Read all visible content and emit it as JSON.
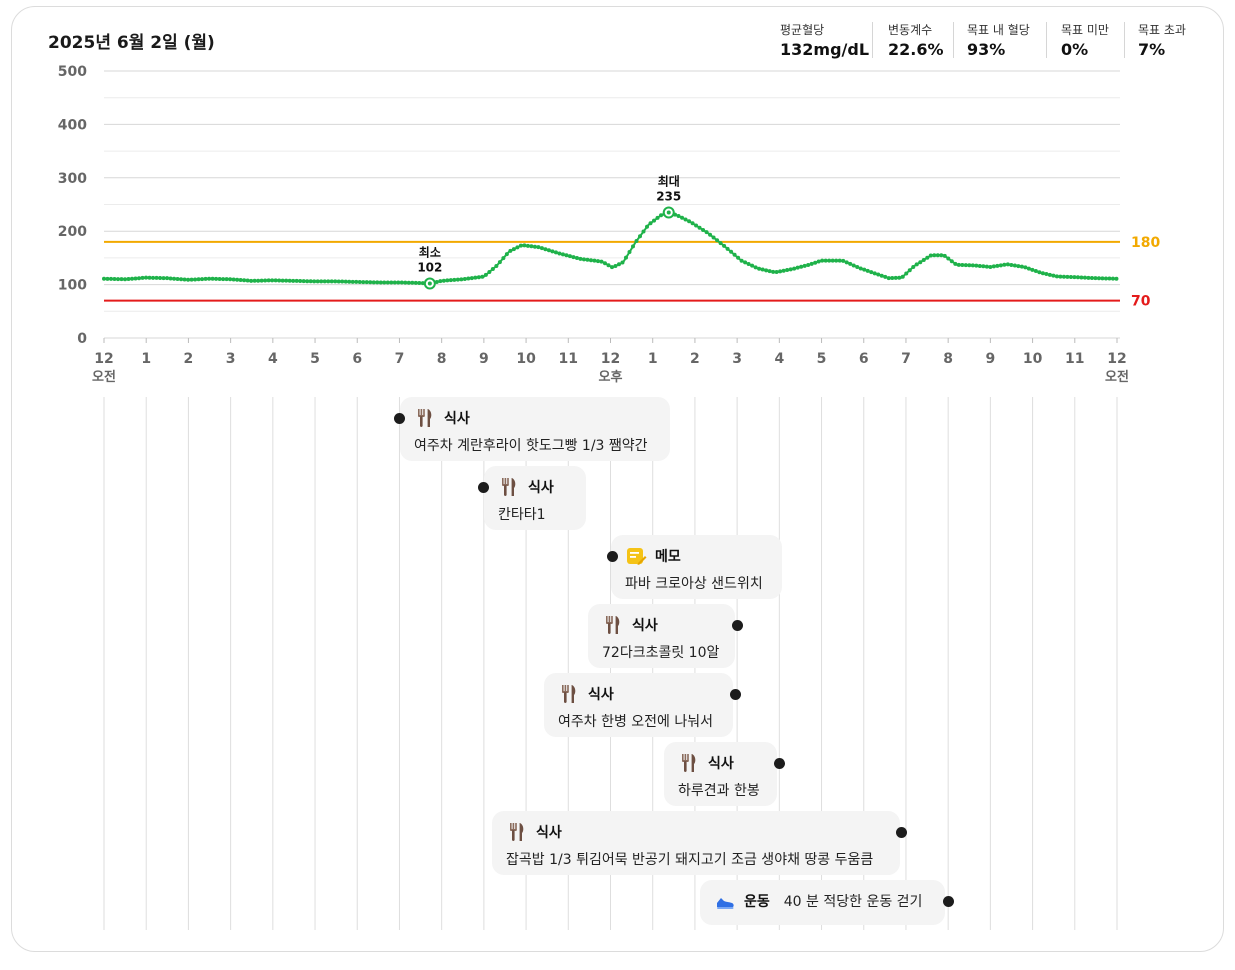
{
  "title": "2025년 6월 2일 (월)",
  "stats": [
    {
      "label": "평균혈당",
      "value": "132mg/dL"
    },
    {
      "label": "변동계수",
      "value": "22.6%"
    },
    {
      "label": "목표 내 혈당",
      "value": "93%"
    },
    {
      "label": "목표 미만",
      "value": "0%"
    },
    {
      "label": "목표 초과",
      "value": "7%"
    }
  ],
  "colors": {
    "series": "#1fb24a",
    "high": "#f2a900",
    "low": "#e41b1b",
    "grid": "#d7d7d7",
    "minorGrid": "#ececec"
  },
  "chart_data": {
    "type": "line",
    "ylim": [
      0,
      500
    ],
    "yticks": [
      0,
      100,
      200,
      300,
      400,
      500
    ],
    "xlim": [
      0,
      24
    ],
    "xtick_labels": [
      "12",
      "1",
      "2",
      "3",
      "4",
      "5",
      "6",
      "7",
      "8",
      "9",
      "10",
      "11",
      "12",
      "1",
      "2",
      "3",
      "4",
      "5",
      "6",
      "7",
      "8",
      "9",
      "10",
      "11",
      "12"
    ],
    "xtick_sublabels": [
      {
        "x": 0,
        "text": "오전"
      },
      {
        "x": 12,
        "text": "오후"
      },
      {
        "x": 24,
        "text": "오전"
      }
    ],
    "thresholds": [
      {
        "value": 180,
        "label": "180"
      },
      {
        "value": 70,
        "label": "70"
      }
    ],
    "annotations": [
      {
        "x": 7.72,
        "y": 102,
        "name": "최소",
        "text": "102"
      },
      {
        "x": 13.38,
        "y": 235,
        "name": "최대",
        "text": "235"
      }
    ],
    "series": [
      {
        "x": [
          0,
          0.5,
          1,
          1.5,
          2,
          2.5,
          3,
          3.5,
          4,
          4.5,
          5,
          5.5,
          6,
          6.5,
          7,
          7.5,
          7.72,
          8,
          8.5,
          9,
          9.3,
          9.6,
          9.9,
          10.3,
          10.8,
          11.3,
          11.8,
          12.05,
          12.3,
          12.6,
          12.9,
          13.2,
          13.38,
          13.6,
          13.9,
          14.3,
          14.7,
          15.1,
          15.5,
          15.9,
          16.3,
          16.7,
          17,
          17.5,
          17.9,
          18.3,
          18.6,
          18.9,
          19.2,
          19.6,
          19.9,
          20.2,
          20.6,
          21,
          21.4,
          21.8,
          22.2,
          22.6,
          23,
          23.5,
          24
        ],
        "y": [
          111,
          110,
          113,
          112,
          109,
          111,
          110,
          107,
          108,
          107,
          106,
          106,
          105,
          104,
          104,
          103,
          102,
          107,
          110,
          115,
          135,
          162,
          174,
          170,
          158,
          148,
          143,
          132,
          142,
          180,
          212,
          230,
          235,
          229,
          217,
          197,
          172,
          145,
          130,
          123,
          129,
          137,
          145,
          145,
          131,
          120,
          112,
          113,
          135,
          155,
          155,
          137,
          136,
          133,
          138,
          133,
          122,
          115,
          114,
          112,
          111
        ]
      }
    ]
  },
  "events": [
    {
      "type": "meal",
      "icon": "fork-knife-icon",
      "title": "식사",
      "desc": "여주차 계란후라이 핫도그빵 1/3 쨈약간",
      "time": 7.0,
      "side": "left"
    },
    {
      "type": "meal",
      "icon": "fork-knife-icon",
      "title": "식사",
      "desc": "칸타타1",
      "time": 9.0,
      "side": "left"
    },
    {
      "type": "memo",
      "icon": "memo-icon",
      "title": "메모",
      "desc": "파바 크로아상 샌드위치",
      "time": 12.05,
      "side": "left"
    },
    {
      "type": "meal",
      "icon": "fork-knife-icon",
      "title": "식사",
      "desc": "72다크초콜릿 10알",
      "time": 15.0,
      "side": "right"
    },
    {
      "type": "meal",
      "icon": "fork-knife-icon",
      "title": "식사",
      "desc": "여주차 한병 오전에 나눠서",
      "time": 14.95,
      "side": "right"
    },
    {
      "type": "meal",
      "icon": "fork-knife-icon",
      "title": "식사",
      "desc": "하루견과 한봉",
      "time": 16.0,
      "side": "right"
    },
    {
      "type": "meal",
      "icon": "fork-knife-icon",
      "title": "식사",
      "desc": "잡곡밥 1/3 튀김어묵 반공기 돼지고기 조금 생야채 땅콩 두움큼",
      "time": 18.9,
      "side": "right"
    },
    {
      "type": "exercise",
      "icon": "shoe-icon",
      "title": "운동",
      "desc": "40 분 적당한 운동 걷기",
      "time": 20.0,
      "side": "right"
    }
  ]
}
